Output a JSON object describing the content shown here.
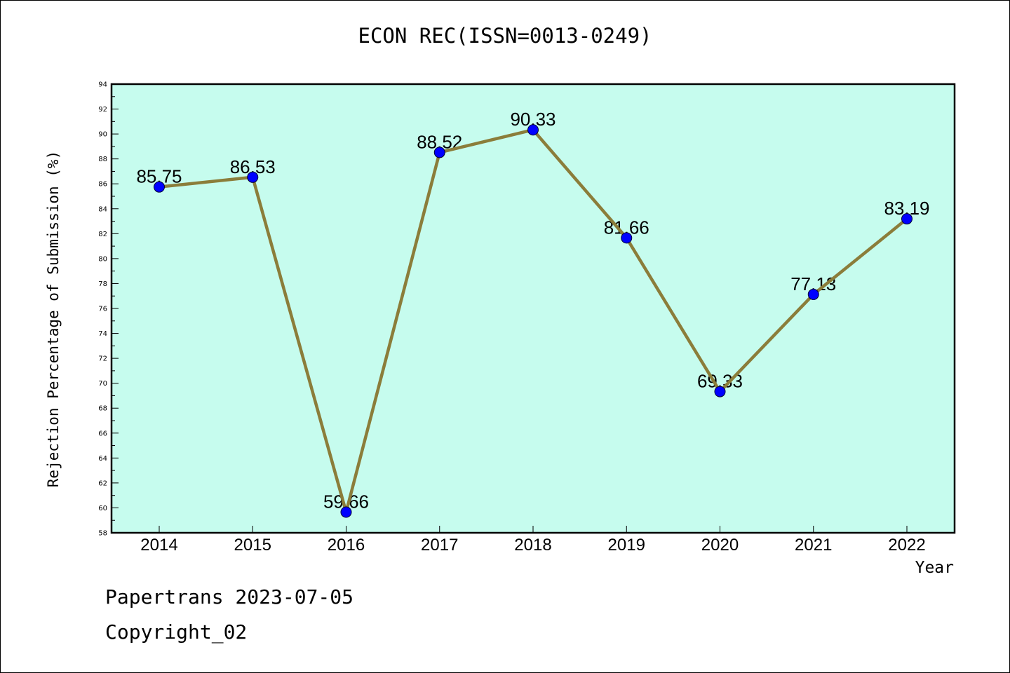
{
  "chart_data": {
    "type": "line",
    "title": "ECON REC(ISSN=0013-0249)",
    "xlabel": "Year",
    "ylabel": "Rejection Percentage of Submission (%)",
    "categories": [
      "2014",
      "2015",
      "2016",
      "2017",
      "2018",
      "2019",
      "2020",
      "2021",
      "2022"
    ],
    "series": [
      {
        "values": [
          85.75,
          86.53,
          59.66,
          88.52,
          90.33,
          81.66,
          69.33,
          77.13,
          83.19
        ]
      }
    ],
    "data_labels": [
      "85.75",
      "86.53",
      "59.66",
      "88.52",
      "90.33",
      "81.66",
      "69.33",
      "77.13",
      "83.19"
    ],
    "ylim": [
      58,
      94
    ],
    "yticks": [
      58,
      60,
      62,
      64,
      66,
      68,
      70,
      72,
      74,
      76,
      78,
      80,
      82,
      84,
      86,
      88,
      90,
      92,
      94
    ],
    "grid": false,
    "colors": {
      "plot_bg": "#c6fcee",
      "line": "#8b7d3a",
      "marker": "#0000ff"
    }
  },
  "footer": {
    "line1": "Papertrans 2023-07-05",
    "line2": "Copyright_02"
  }
}
